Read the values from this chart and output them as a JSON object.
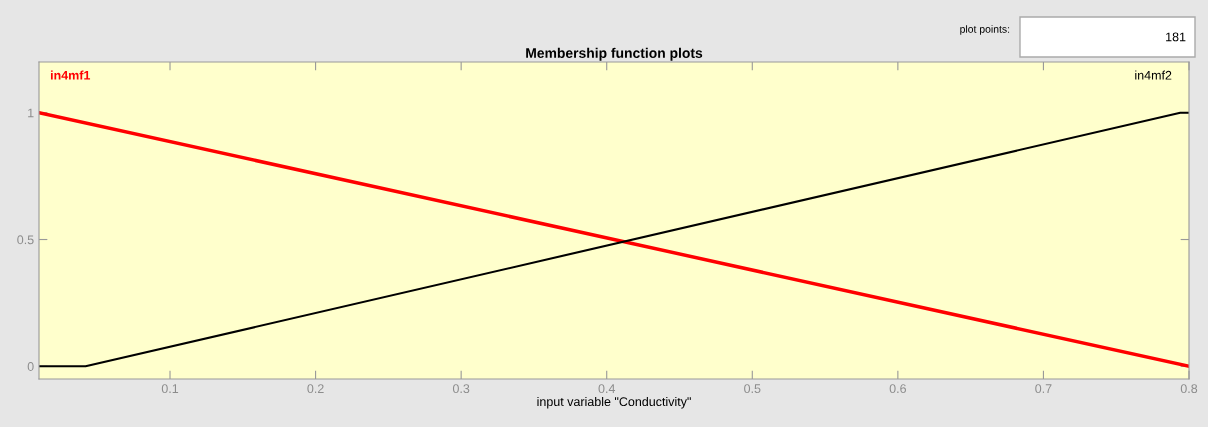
{
  "chart_data": {
    "type": "line",
    "title": "Membership function plots",
    "xlabel": "input variable \"Conductivity\"",
    "series": [
      {
        "name": "in4mf1",
        "color": "#ff0000",
        "x": [
          0.01,
          0.8
        ],
        "values": [
          1,
          0
        ]
      },
      {
        "name": "in4mf2",
        "color": "#000000",
        "x": [
          0.01,
          0.042,
          0.794,
          0.8
        ],
        "values": [
          0,
          0,
          1,
          1
        ]
      }
    ],
    "xlim": [
      0.01,
      0.8
    ],
    "ylim": [
      -0.05,
      1.2
    ],
    "xticks": [
      0.1,
      0.2,
      0.3,
      0.4,
      0.5,
      0.6,
      0.7,
      0.8
    ],
    "yticks": [
      0,
      0.5,
      1
    ],
    "grid": false,
    "marker": "none",
    "line_style": "solid",
    "annotations": [
      "plot points:",
      "181"
    ]
  }
}
